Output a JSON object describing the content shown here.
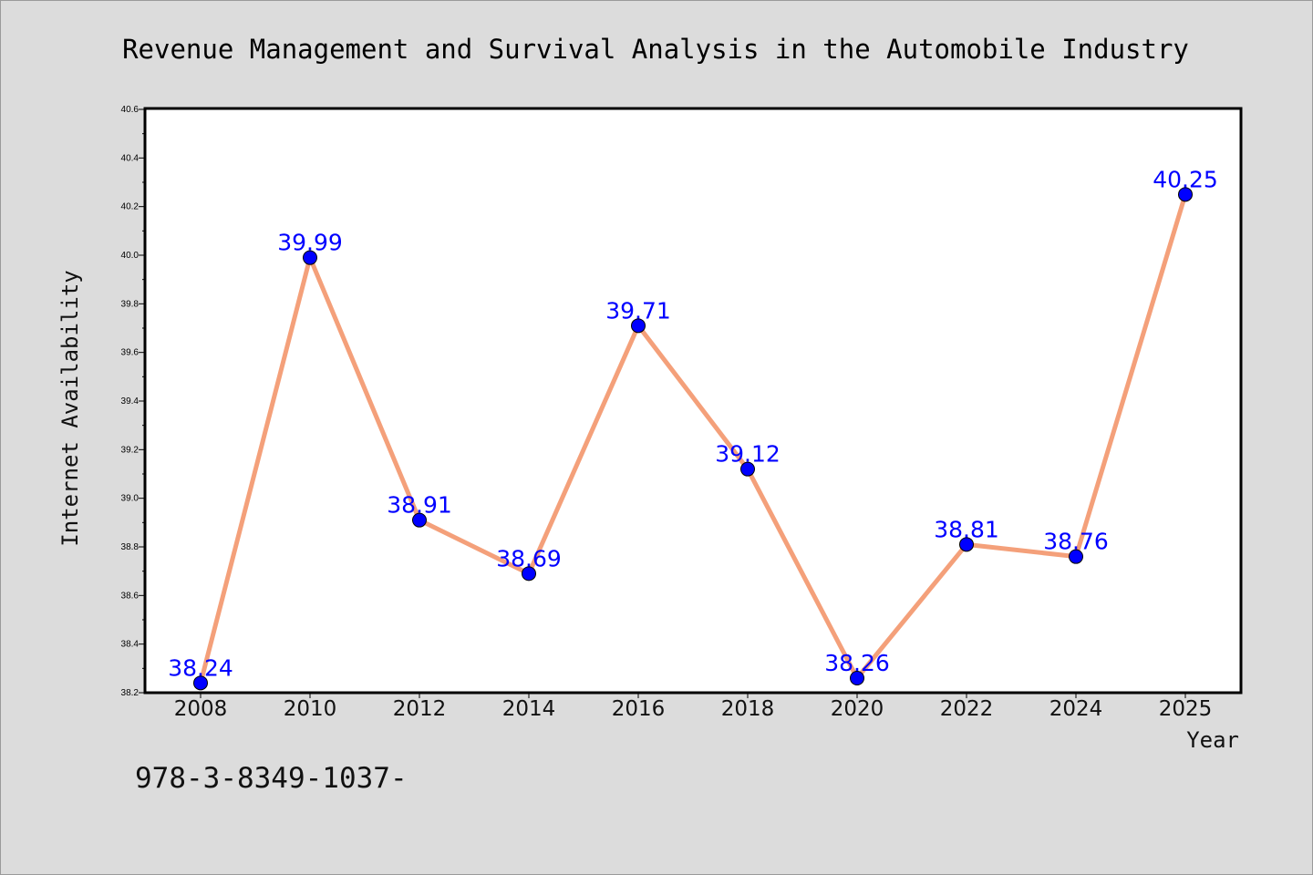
{
  "chart_data": {
    "type": "line",
    "title": "Revenue Management and Survival Analysis in the Automobile Industry",
    "xlabel": "Year",
    "ylabel": "Internet Availability",
    "x": [
      "2008",
      "2010",
      "2012",
      "2014",
      "2016",
      "2018",
      "2020",
      "2022",
      "2024",
      "2025"
    ],
    "values": [
      38.24,
      39.99,
      38.91,
      38.69,
      39.71,
      39.12,
      38.26,
      38.81,
      38.76,
      40.25
    ],
    "data_labels": [
      "38.24",
      "39.99",
      "38.91",
      "38.69",
      "39.71",
      "39.12",
      "38.26",
      "38.81",
      "38.76",
      "40.25"
    ],
    "ylim": [
      38.2,
      40.6
    ],
    "yticks": [
      "38.2",
      "38.4",
      "38.6",
      "38.8",
      "39.0",
      "39.2",
      "39.4",
      "39.6",
      "39.8",
      "40.0",
      "40.2",
      "40.4",
      "40.6"
    ],
    "grid": false,
    "line_color": "#f4a07a",
    "marker_color": "#0000ff",
    "label_color": "#0000ff"
  },
  "footer_text": "978-3-8349-1037-"
}
